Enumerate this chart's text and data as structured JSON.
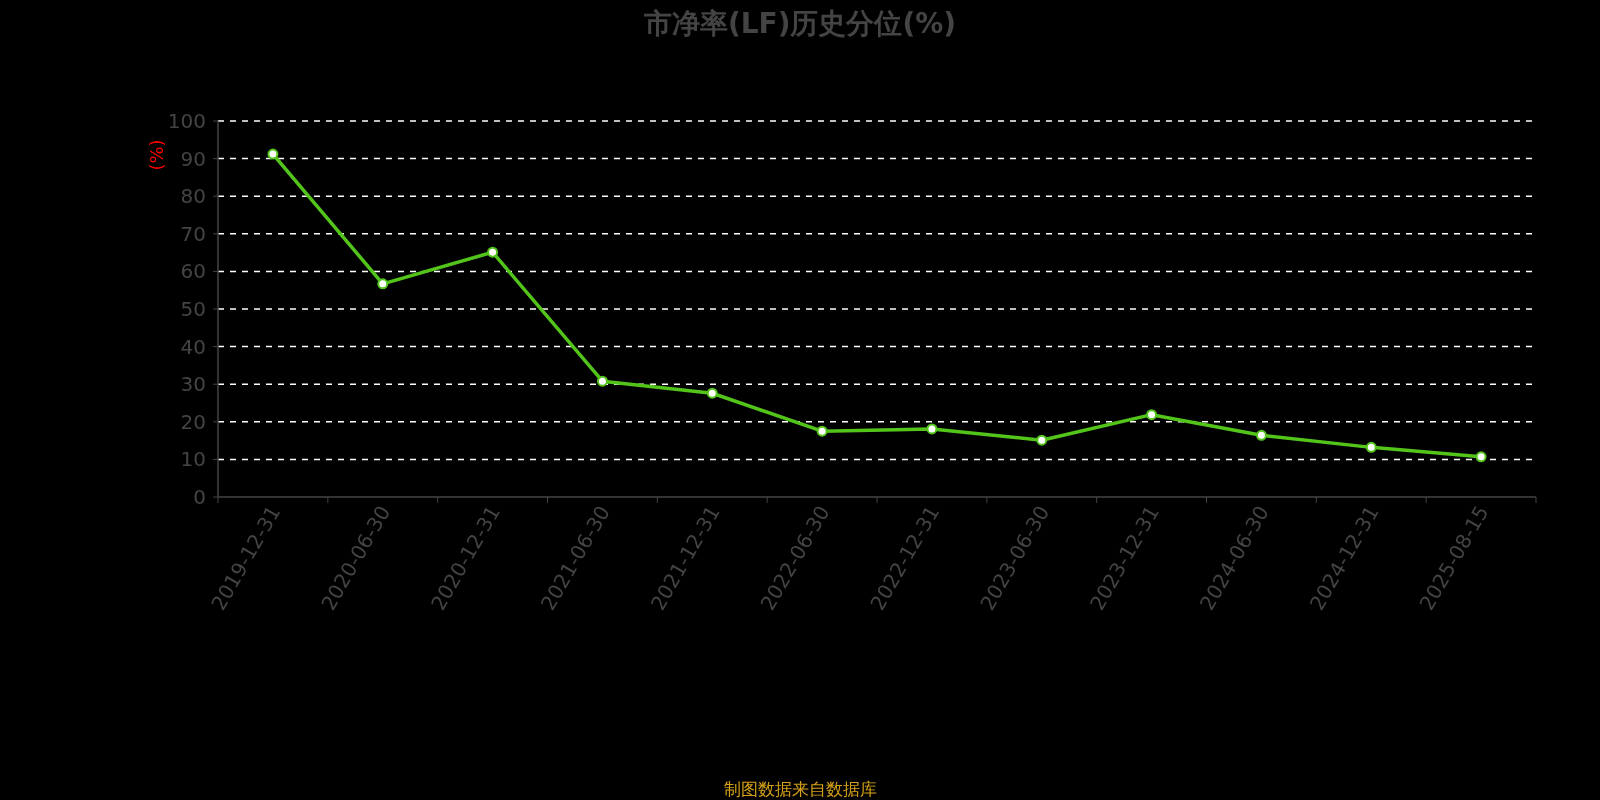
{
  "chart_data": {
    "type": "line",
    "title": "市净率(LF)历史分位(%)",
    "ylabel": "(%)",
    "annotations": [
      "制图数据来自数据库"
    ],
    "categories": [
      "2019-12-31",
      "2020-06-30",
      "2020-12-31",
      "2021-06-30",
      "2021-12-31",
      "2022-06-30",
      "2022-12-31",
      "2023-06-30",
      "2023-12-31",
      "2024-06-30",
      "2024-12-31",
      "2025-08-15"
    ],
    "series": [
      {
        "color": "#52c41a",
        "values": [
          91.2,
          56.7,
          65.1,
          30.8,
          27.6,
          17.5,
          18.1,
          15.1,
          21.9,
          16.4,
          13.2,
          10.7
        ]
      }
    ],
    "ylim": [
      0,
      100
    ],
    "yticks": [
      0,
      10,
      20,
      30,
      40,
      50,
      60,
      70,
      80,
      90,
      100
    ],
    "grid": "y",
    "marker": "circle",
    "line_style": "solid"
  }
}
